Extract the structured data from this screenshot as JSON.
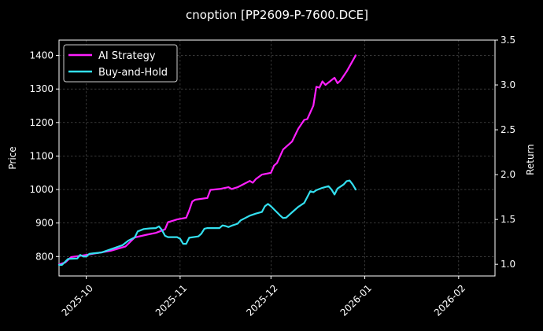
{
  "chart_data": {
    "type": "line",
    "title": "cnoption [PP2609-P-7600.DCE]",
    "xlabel": "",
    "ylabel_left": "Price",
    "ylabel_right": "Return",
    "x_ticks": [
      "2025-10",
      "2025-11",
      "2025-12",
      "2026-01",
      "2026-02"
    ],
    "x_range": [
      "2025-09-22",
      "2026-02-13"
    ],
    "y_left": {
      "ylim": [
        742,
        1446
      ],
      "ticks": [
        "800",
        "900",
        "1000",
        "1100",
        "1200",
        "1300",
        "1400"
      ]
    },
    "y_right": {
      "ylim": [
        0.87,
        3.5
      ],
      "ticks": [
        "1.0",
        "1.5",
        "2.0",
        "2.5",
        "3.0",
        "3.5"
      ]
    },
    "grid": true,
    "legend_placement": "top-left",
    "series": [
      {
        "name": "AI Strategy",
        "axis": "right",
        "color": "#ff1fff",
        "points": [
          [
            "2025-09-22",
            1.0
          ],
          [
            "2025-09-24",
            1.02
          ],
          [
            "2025-09-26",
            1.08
          ],
          [
            "2025-09-30",
            1.1
          ],
          [
            "2025-10-09",
            1.15
          ],
          [
            "2025-10-14",
            1.2
          ],
          [
            "2025-10-17",
            1.3
          ],
          [
            "2025-10-21",
            1.33
          ],
          [
            "2025-10-24",
            1.35
          ],
          [
            "2025-10-27",
            1.39
          ],
          [
            "2025-10-28",
            1.47
          ],
          [
            "2025-10-30",
            1.49
          ],
          [
            "2025-10-31",
            1.5
          ],
          [
            "2025-11-03",
            1.52
          ],
          [
            "2025-11-04",
            1.6
          ],
          [
            "2025-11-05",
            1.7
          ],
          [
            "2025-11-06",
            1.72
          ],
          [
            "2025-11-10",
            1.74
          ],
          [
            "2025-11-11",
            1.83
          ],
          [
            "2025-11-14",
            1.84
          ],
          [
            "2025-11-17",
            1.86
          ],
          [
            "2025-11-18",
            1.84
          ],
          [
            "2025-11-20",
            1.86
          ],
          [
            "2025-11-24",
            1.93
          ],
          [
            "2025-11-25",
            1.91
          ],
          [
            "2025-11-26",
            1.95
          ],
          [
            "2025-11-28",
            2.0
          ],
          [
            "2025-12-01",
            2.02
          ],
          [
            "2025-12-02",
            2.1
          ],
          [
            "2025-12-03",
            2.13
          ],
          [
            "2025-12-05",
            2.28
          ],
          [
            "2025-12-08",
            2.37
          ],
          [
            "2025-12-10",
            2.51
          ],
          [
            "2025-12-12",
            2.61
          ],
          [
            "2025-12-13",
            2.62
          ],
          [
            "2025-12-15",
            2.77
          ],
          [
            "2025-12-16",
            2.98
          ],
          [
            "2025-12-17",
            2.97
          ],
          [
            "2025-12-18",
            3.04
          ],
          [
            "2025-12-19",
            3.0
          ],
          [
            "2025-12-22",
            3.08
          ],
          [
            "2025-12-23",
            3.02
          ],
          [
            "2025-12-24",
            3.05
          ],
          [
            "2025-12-25",
            3.1
          ],
          [
            "2025-12-26",
            3.15
          ],
          [
            "2025-12-29",
            3.33
          ]
        ]
      },
      {
        "name": "Buy-and-Hold",
        "axis": "left",
        "color": "#33e0f0",
        "points": [
          [
            "2025-09-22",
            775
          ],
          [
            "2025-09-23",
            775
          ],
          [
            "2025-09-25",
            793
          ],
          [
            "2025-09-28",
            794
          ],
          [
            "2025-09-29",
            805
          ],
          [
            "2025-09-30",
            800
          ],
          [
            "2025-10-01",
            800
          ],
          [
            "2025-10-02",
            808
          ],
          [
            "2025-10-03",
            809
          ],
          [
            "2025-10-06",
            812
          ],
          [
            "2025-10-13",
            834
          ],
          [
            "2025-10-15",
            848
          ],
          [
            "2025-10-17",
            857
          ],
          [
            "2025-10-18",
            875
          ],
          [
            "2025-10-20",
            882
          ],
          [
            "2025-10-22",
            884
          ],
          [
            "2025-10-24",
            885
          ],
          [
            "2025-10-25",
            890
          ],
          [
            "2025-10-26",
            879
          ],
          [
            "2025-10-27",
            862
          ],
          [
            "2025-10-28",
            858
          ],
          [
            "2025-10-31",
            858
          ],
          [
            "2025-11-01",
            853
          ],
          [
            "2025-11-02",
            838
          ],
          [
            "2025-11-03",
            838
          ],
          [
            "2025-11-04",
            856
          ],
          [
            "2025-11-07",
            860
          ],
          [
            "2025-11-08",
            868
          ],
          [
            "2025-11-09",
            883
          ],
          [
            "2025-11-10",
            885
          ],
          [
            "2025-11-14",
            885
          ],
          [
            "2025-11-15",
            893
          ],
          [
            "2025-11-16",
            891
          ],
          [
            "2025-11-17",
            888
          ],
          [
            "2025-11-18",
            892
          ],
          [
            "2025-11-20",
            898
          ],
          [
            "2025-11-21",
            908
          ],
          [
            "2025-11-24",
            922
          ],
          [
            "2025-11-26",
            928
          ],
          [
            "2025-11-28",
            933
          ],
          [
            "2025-11-29",
            950
          ],
          [
            "2025-11-30",
            957
          ],
          [
            "2025-12-01",
            950
          ],
          [
            "2025-12-04",
            923
          ],
          [
            "2025-12-05",
            915
          ],
          [
            "2025-12-06",
            916
          ],
          [
            "2025-12-08",
            932
          ],
          [
            "2025-12-10",
            948
          ],
          [
            "2025-12-12",
            960
          ],
          [
            "2025-12-14",
            995
          ],
          [
            "2025-12-15",
            992
          ],
          [
            "2025-12-16",
            998
          ],
          [
            "2025-12-18",
            1005
          ],
          [
            "2025-12-20",
            1010
          ],
          [
            "2025-12-21",
            1000
          ],
          [
            "2025-12-22",
            985
          ],
          [
            "2025-12-23",
            1003
          ],
          [
            "2025-12-25",
            1015
          ],
          [
            "2025-12-26",
            1025
          ],
          [
            "2025-12-27",
            1027
          ],
          [
            "2025-12-28",
            1015
          ],
          [
            "2025-12-29",
            1000
          ]
        ]
      }
    ]
  }
}
